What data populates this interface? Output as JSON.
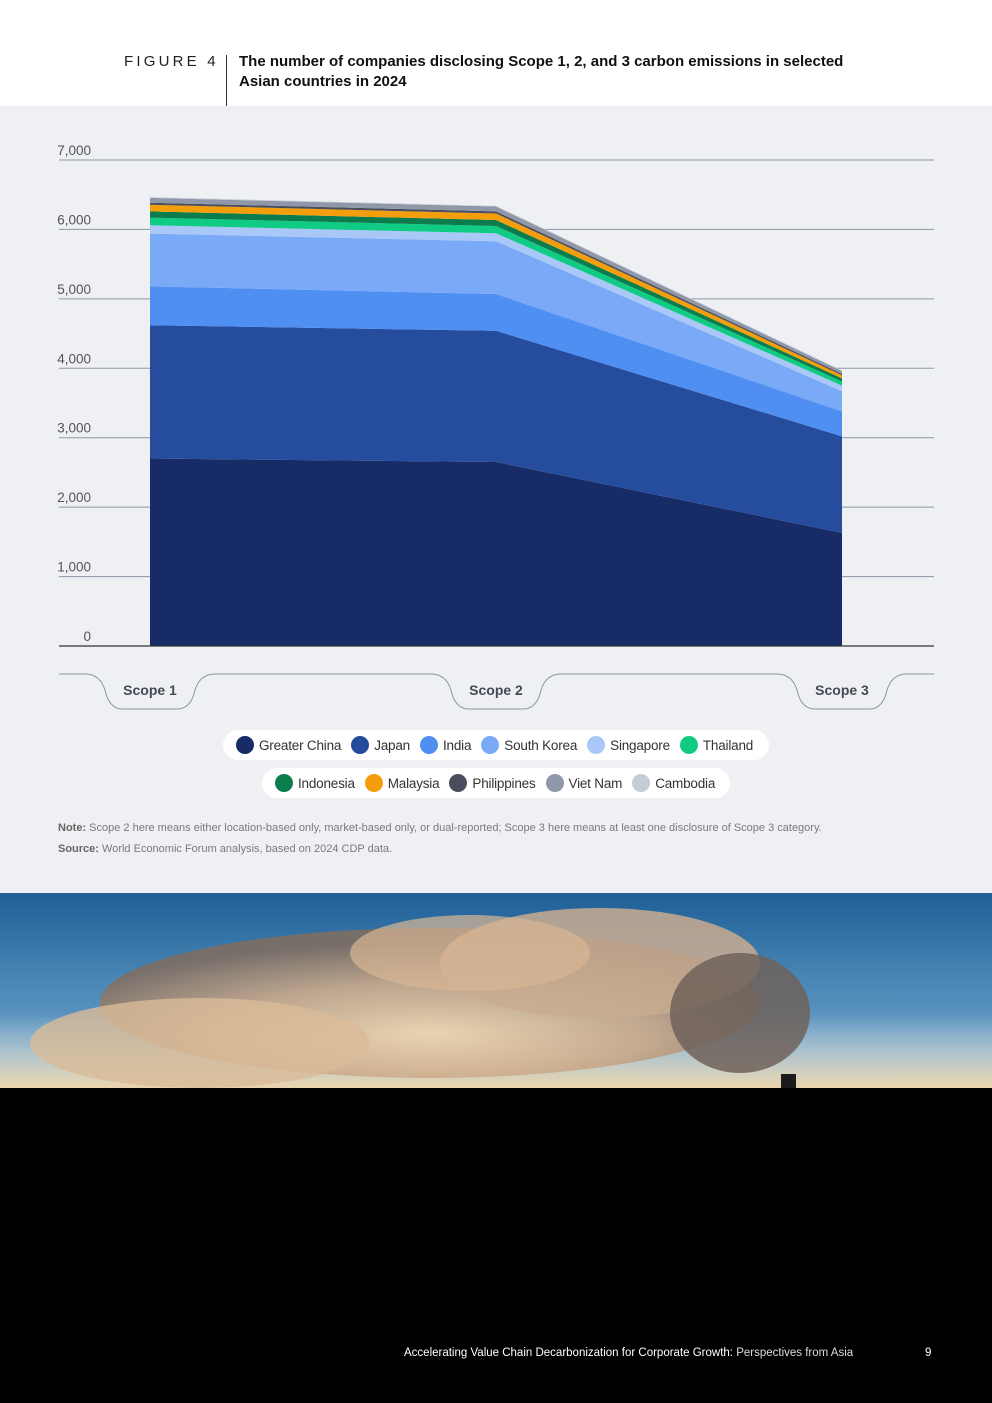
{
  "figure": {
    "label": "FIGURE 4",
    "title": "The number of companies disclosing Scope 1, 2, and 3 carbon emissions in selected Asian countries in 2024"
  },
  "chart_data": {
    "type": "area",
    "stacked": true,
    "categories": [
      "Scope 1",
      "Scope 2",
      "Scope 3"
    ],
    "ylim": [
      0,
      7000
    ],
    "yticks": [
      0,
      1000,
      2000,
      3000,
      4000,
      5000,
      6000,
      7000
    ],
    "ytick_labels": [
      "0",
      "1,000",
      "2,000",
      "3,000",
      "4,000",
      "5,000",
      "6,000",
      "7,000"
    ],
    "grid": true,
    "legend_position": "bottom",
    "series": [
      {
        "name": "Greater China",
        "color": "#172c66",
        "values": [
          2700,
          2650,
          1630
        ]
      },
      {
        "name": "Japan",
        "color": "#264c9e",
        "values": [
          1920,
          1890,
          1390
        ]
      },
      {
        "name": "India",
        "color": "#4f8ff2",
        "values": [
          560,
          530,
          360
        ]
      },
      {
        "name": "South Korea",
        "color": "#7aaaf7",
        "values": [
          760,
          760,
          290
        ]
      },
      {
        "name": "Singapore",
        "color": "#a9c8f7",
        "values": [
          120,
          115,
          80
        ]
      },
      {
        "name": "Thailand",
        "color": "#0fcb84",
        "values": [
          110,
          105,
          60
        ]
      },
      {
        "name": "Indonesia",
        "color": "#0b7c4c",
        "values": [
          90,
          85,
          45
        ]
      },
      {
        "name": "Malaysia",
        "color": "#f59e0b",
        "values": [
          95,
          95,
          45
        ]
      },
      {
        "name": "Philippines",
        "color": "#4a4e5c",
        "values": [
          30,
          30,
          20
        ]
      },
      {
        "name": "Viet Nam",
        "color": "#8f97a9",
        "values": [
          70,
          70,
          40
        ]
      },
      {
        "name": "Cambodia",
        "color": "#c6ccd6",
        "values": [
          10,
          10,
          10
        ]
      }
    ]
  },
  "notes": {
    "note_label": "Note:",
    "note_text": " Scope 2 here means either location-based only, market-based only, or dual-reported; Scope 3 here means at least one disclosure of Scope 3 category.",
    "source_label": "Source:",
    "source_text": " World Economic Forum analysis, based on 2024 CDP data."
  },
  "footer": {
    "title_bold": "Accelerating Value Chain Decarbonization for Corporate Growth:",
    "title_light": " Perspectives from Asia",
    "page": "9"
  }
}
